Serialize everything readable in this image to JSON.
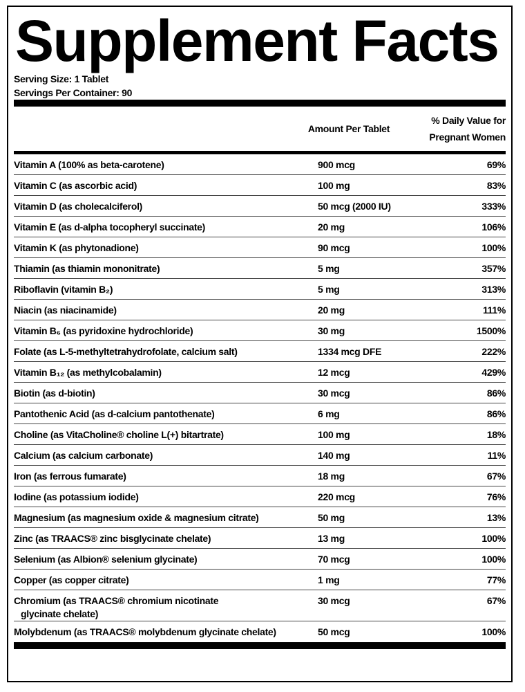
{
  "title": "Supplement Facts",
  "serving_size": "Serving Size: 1 Tablet",
  "servings_per_container": "Servings Per Container: 90",
  "table": {
    "header": [
      "Amount Per Tablet",
      "% Daily Value for Pregnant Women"
    ],
    "rows": [
      [
        "Vitamin A (100% as beta-carotene)",
        "900 mcg",
        "69%"
      ],
      [
        "Vitamin C (as ascorbic acid)",
        "100 mg",
        "83%"
      ],
      [
        "Vitamin D (as cholecalciferol)",
        "50 mcg (2000 IU)",
        "333%"
      ],
      [
        "Vitamin E (as d-alpha tocopheryl succinate)",
        "20 mg",
        "106%"
      ],
      [
        "Vitamin K (as phytonadione)",
        "90 mcg",
        "100%"
      ],
      [
        "Thiamin (as thiamin mononitrate)",
        "5 mg",
        "357%"
      ],
      [
        "Riboflavin (vitamin B₂)",
        "5 mg",
        "313%"
      ],
      [
        "Niacin (as niacinamide)",
        "20 mg",
        "111%"
      ],
      [
        "Vitamin B₆ (as pyridoxine hydrochloride)",
        "30 mg",
        "1500%"
      ],
      [
        "Folate (as L-5-methyltetrahydrofolate, calcium salt)",
        "1334 mcg DFE",
        "222%"
      ],
      [
        "Vitamin B₁₂ (as methylcobalamin)",
        "12 mcg",
        "429%"
      ],
      [
        "Biotin (as d-biotin)",
        "30 mcg",
        "86%"
      ],
      [
        "Pantothenic Acid (as d-calcium pantothenate)",
        "6 mg",
        "86%"
      ],
      [
        "Choline (as VitaCholine® choline L(+) bitartrate)",
        "100 mg",
        "18%"
      ],
      [
        "Calcium (as calcium carbonate)",
        "140 mg",
        "11%"
      ],
      [
        "Iron (as ferrous fumarate)",
        "18 mg",
        "67%"
      ],
      [
        "Iodine (as potassium iodide)",
        "220 mcg",
        "76%"
      ],
      [
        "Magnesium (as magnesium oxide & magnesium citrate)",
        "50 mg",
        "13%"
      ],
      [
        "Zinc (as TRAACS® zinc bisglycinate chelate)",
        "13 mg",
        "100%"
      ],
      [
        "Selenium (as Albion® selenium glycinate)",
        "70 mcg",
        "100%"
      ],
      [
        "Copper (as copper citrate)",
        "1 mg",
        "77%"
      ],
      [
        "Chromium (as TRAACS® chromium nicotinate glycinate chelate)",
        "30 mcg",
        "67%"
      ],
      [
        "Molybdenum (as TRAACS® molybdenum glycinate chelate)",
        "50 mcg",
        "100%"
      ]
    ]
  }
}
